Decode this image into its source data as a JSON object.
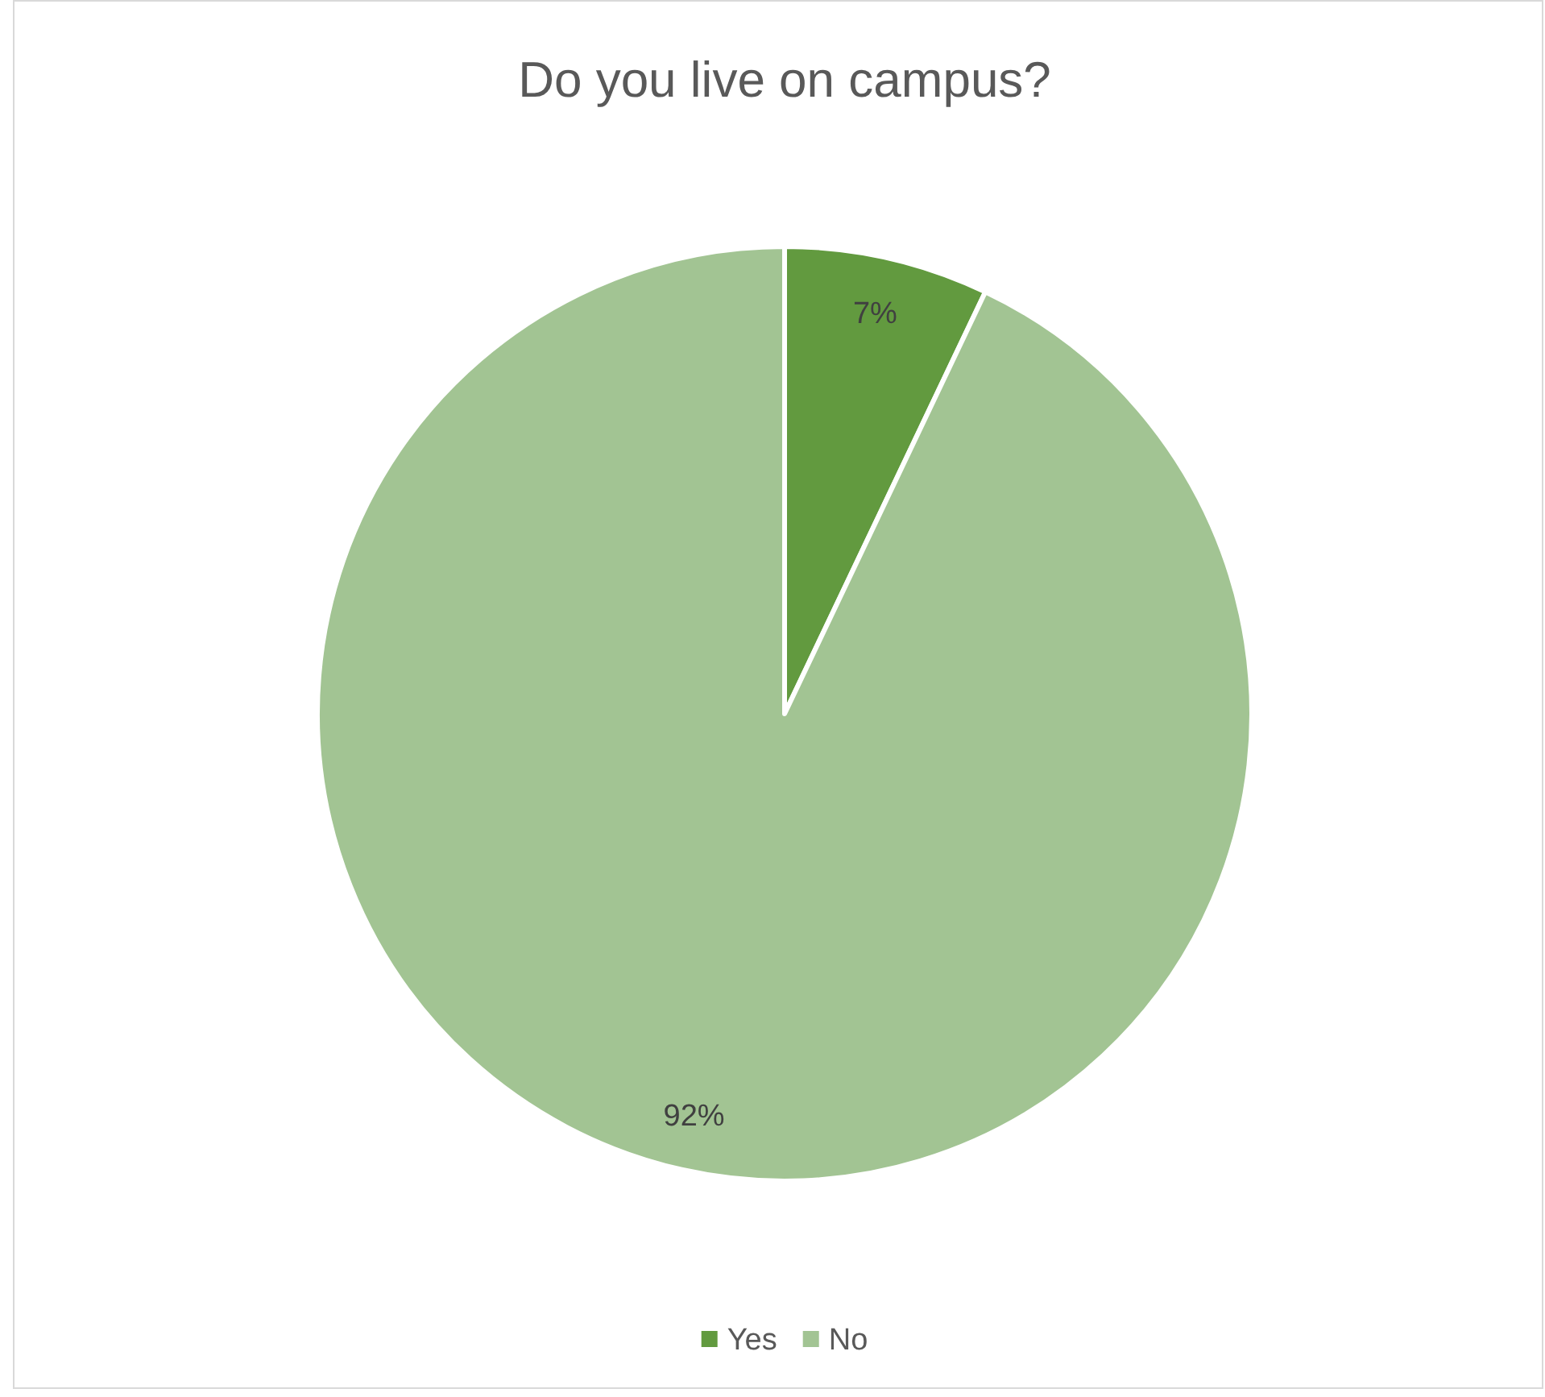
{
  "chart_data": {
    "type": "pie",
    "title": "Do you live on campus?",
    "categories": [
      "Yes",
      "No"
    ],
    "values": [
      7,
      92
    ],
    "colors": [
      "#629a3f",
      "#a2c493"
    ],
    "value_labels": [
      "7%",
      "92%"
    ],
    "legend": "bottom"
  }
}
